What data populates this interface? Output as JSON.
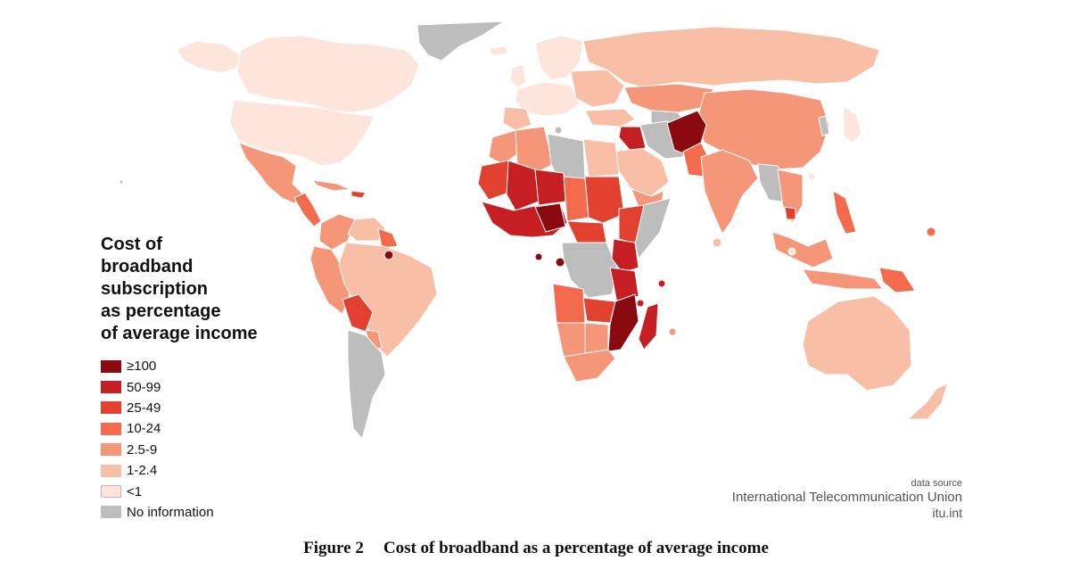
{
  "map": {
    "title_lines": [
      "Cost of",
      "broadband",
      "subscription",
      "as percentage",
      "of average income"
    ],
    "legend": [
      {
        "label": "≥100",
        "color": "#8b0a10"
      },
      {
        "label": "50-99",
        "color": "#c51f23"
      },
      {
        "label": "25-49",
        "color": "#e2412f"
      },
      {
        "label": "10-24",
        "color": "#f36a4c"
      },
      {
        "label": "2.5-9",
        "color": "#f59678"
      },
      {
        "label": "1-2.4",
        "color": "#f9bea6"
      },
      {
        "label": "<1",
        "color": "#fde5dc"
      },
      {
        "label": "No information",
        "color": "#bdbdbd"
      }
    ],
    "colors": {
      "border": "#ffffff",
      "ocean": "#ffffff",
      "text": "#111111",
      "source_text": "#555555"
    },
    "source": {
      "line1": "data source",
      "line2": "International Telecommunication Union",
      "line3": "itu.int"
    }
  },
  "caption": {
    "number": "Figure 2",
    "text": "Cost of broadband as a percentage of average income"
  }
}
